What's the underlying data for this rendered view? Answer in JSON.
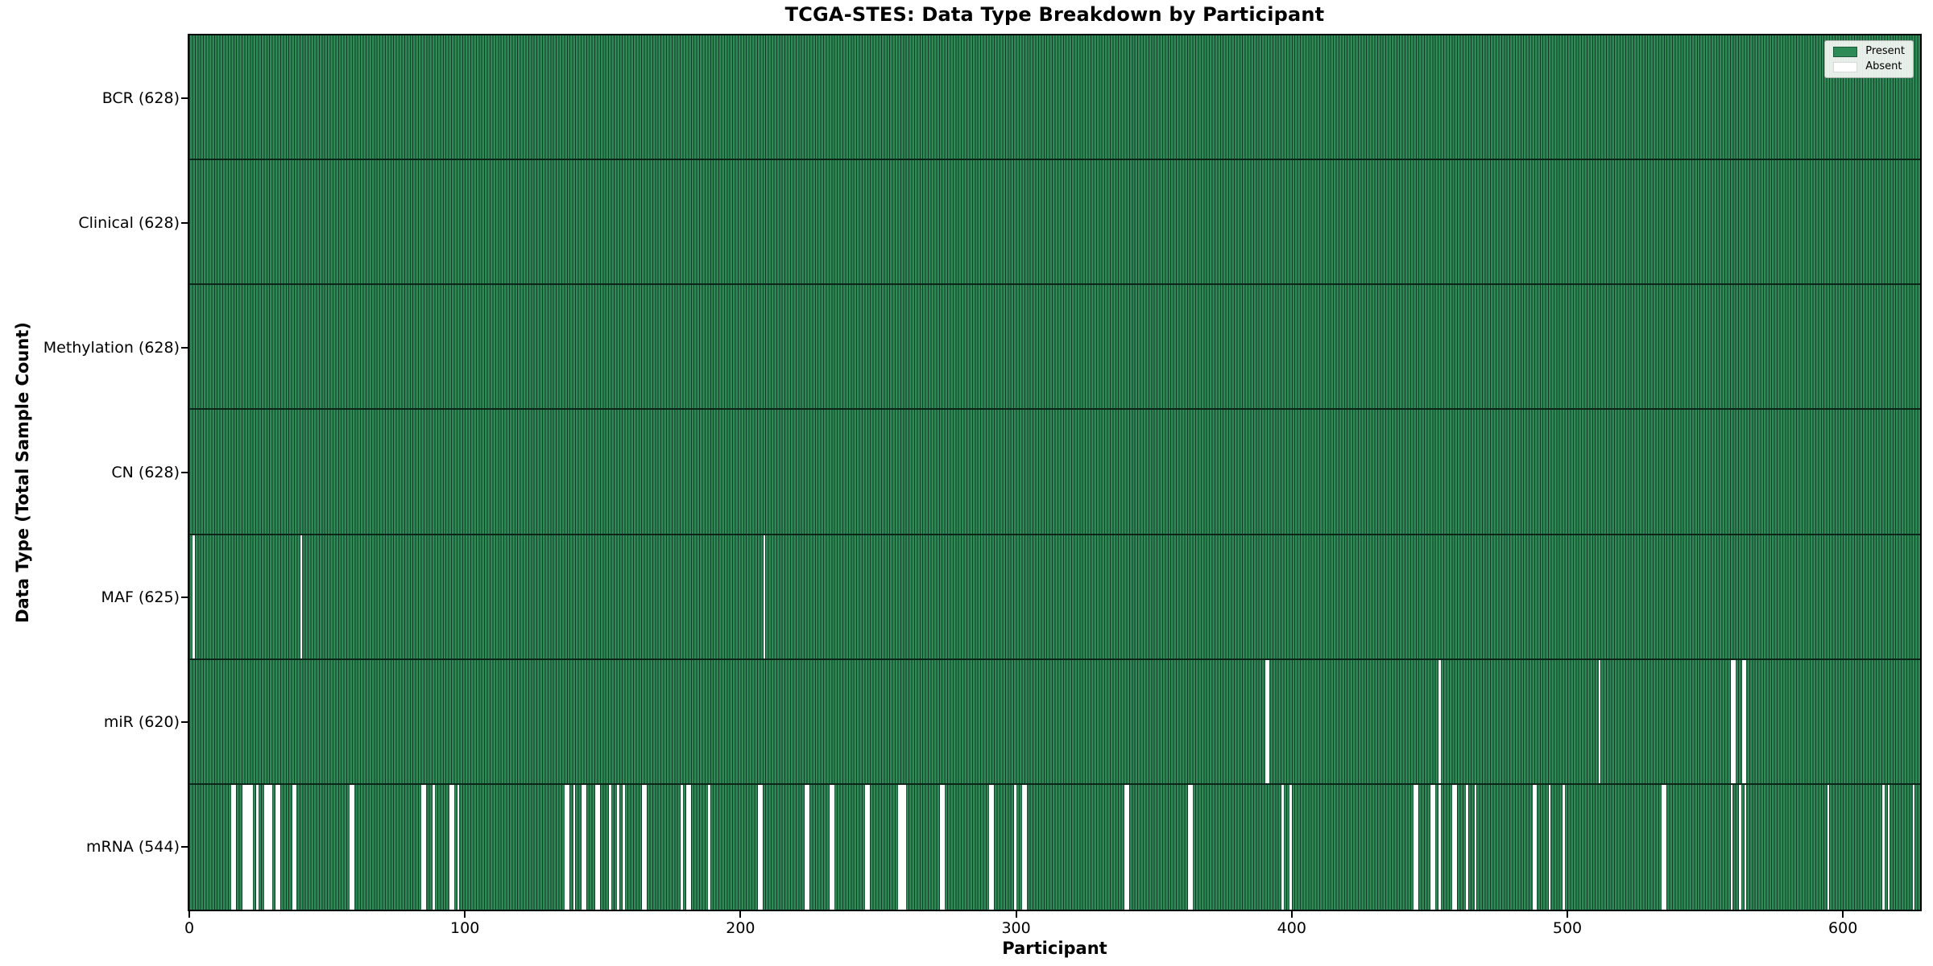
{
  "chart_data": {
    "type": "heatmap",
    "title": "TCGA-STES: Data Type Breakdown by Participant",
    "xlabel": "Participant",
    "ylabel": "Data Type (Total Sample Count)",
    "n_participants": 628,
    "x_axis": {
      "range": [
        0,
        628
      ],
      "ticks": [
        0,
        100,
        200,
        300,
        400,
        500,
        600
      ]
    },
    "legend_position": "upper right",
    "legend": [
      {
        "label": "Present",
        "color": "#2e8b57"
      },
      {
        "label": "Absent",
        "color": "#ffffff"
      }
    ],
    "colors": {
      "present": "#2e8b57",
      "absent": "#ffffff",
      "bar_edge": "#123b26",
      "row_separator": "#0d2418"
    },
    "rows": [
      {
        "name": "BCR",
        "label": "BCR (628)",
        "count": 628,
        "absent": []
      },
      {
        "name": "Clinical",
        "label": "Clinical (628)",
        "count": 628,
        "absent": []
      },
      {
        "name": "Methylation",
        "label": "Methylation (628)",
        "count": 628,
        "absent": []
      },
      {
        "name": "CN",
        "label": "CN (628)",
        "count": 628,
        "absent": []
      },
      {
        "name": "MAF",
        "label": "MAF (625)",
        "count": 625,
        "absent": [
          1,
          40,
          208
        ]
      },
      {
        "name": "miR",
        "label": "miR (620)",
        "count": 620,
        "absent": [
          390,
          391,
          453,
          511,
          559,
          560,
          563,
          564
        ]
      },
      {
        "name": "mRNA",
        "label": "mRNA (544)",
        "count": 544,
        "absent": [
          15,
          16,
          19,
          20,
          21,
          22,
          24,
          27,
          28,
          29,
          31,
          32,
          37,
          38,
          58,
          59,
          84,
          85,
          88,
          94,
          95,
          97,
          136,
          137,
          139,
          142,
          143,
          147,
          148,
          152,
          155,
          157,
          164,
          165,
          178,
          180,
          181,
          188,
          206,
          207,
          223,
          224,
          232,
          233,
          245,
          246,
          257,
          258,
          259,
          272,
          273,
          290,
          291,
          299,
          302,
          303,
          339,
          340,
          362,
          363,
          396,
          399,
          444,
          445,
          450,
          451,
          453,
          458,
          459,
          463,
          466,
          487,
          488,
          493,
          498,
          534,
          535,
          559,
          562,
          564,
          594,
          614,
          616,
          625
        ]
      }
    ]
  }
}
